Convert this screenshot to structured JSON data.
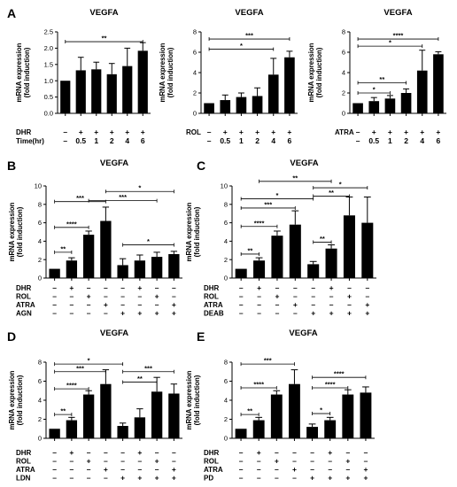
{
  "chart_data": [
    {
      "type": "bar",
      "panel_label": "A",
      "title": "VEGFA",
      "ylabel": [
        "mRNA expression",
        "(fold induction)"
      ],
      "ylim": [
        0,
        2.5
      ],
      "yticks": [
        "0.0",
        "0.5",
        "1.0",
        "1.5",
        "2.0",
        "2.5"
      ],
      "values": [
        1.0,
        1.32,
        1.35,
        1.2,
        1.45,
        1.92
      ],
      "errors": [
        0,
        0.4,
        0.22,
        0.33,
        0.55,
        0.25
      ],
      "rows": [
        {
          "label": "DHR",
          "cells": [
            "–",
            "+",
            "+",
            "+",
            "+",
            "+"
          ]
        },
        {
          "label": "Time(hr)",
          "cells": [
            "–",
            "0.5",
            "1",
            "2",
            "4",
            "6"
          ]
        }
      ],
      "brackets": [
        {
          "from": 0,
          "to": 5,
          "y": 2.2,
          "label": "**"
        }
      ]
    },
    {
      "type": "bar",
      "panel_label": "",
      "title": "VEGFA",
      "ylabel": [
        "mRNA expression",
        "(fold induction)"
      ],
      "ylim": [
        0,
        8
      ],
      "yticks": [
        "0",
        "2",
        "4",
        "6",
        "8"
      ],
      "values": [
        1.0,
        1.3,
        1.6,
        1.7,
        3.8,
        5.5
      ],
      "errors": [
        0,
        0.5,
        0.4,
        0.8,
        1.6,
        0.6
      ],
      "rows": [
        {
          "label": "ROL",
          "cells": [
            "–",
            "+",
            "+",
            "+",
            "+",
            "+"
          ]
        },
        {
          "label": "",
          "cells": [
            "–",
            "0.5",
            "1",
            "2",
            "4",
            "6"
          ]
        }
      ],
      "brackets": [
        {
          "from": 0,
          "to": 5,
          "y": 7.3,
          "label": "***"
        },
        {
          "from": 0,
          "to": 4,
          "y": 6.3,
          "label": "*"
        }
      ]
    },
    {
      "type": "bar",
      "panel_label": "",
      "title": "VEGFA",
      "ylabel": [
        "mRNA expression",
        "(fold induction)"
      ],
      "ylim": [
        0,
        8
      ],
      "yticks": [
        "0",
        "2",
        "4",
        "6",
        "8"
      ],
      "values": [
        1.0,
        1.2,
        1.45,
        2.0,
        4.2,
        5.8
      ],
      "errors": [
        0,
        0.35,
        0.3,
        0.4,
        2.0,
        0.25
      ],
      "rows": [
        {
          "label": "ATRA",
          "cells": [
            "–",
            "+",
            "+",
            "+",
            "+",
            "+"
          ]
        },
        {
          "label": "",
          "cells": [
            "–",
            "0.5",
            "1",
            "2",
            "4",
            "6"
          ]
        }
      ],
      "brackets": [
        {
          "from": 0,
          "to": 5,
          "y": 7.3,
          "label": "****"
        },
        {
          "from": 0,
          "to": 4,
          "y": 6.6,
          "label": "*"
        },
        {
          "from": 0,
          "to": 3,
          "y": 3.0,
          "label": "**"
        },
        {
          "from": 0,
          "to": 2,
          "y": 2.0,
          "label": "*"
        }
      ]
    },
    {
      "type": "bar",
      "panel_label": "B",
      "title": "VEGFA",
      "ylabel": [
        "mRNA expression",
        "(fold induction)"
      ],
      "ylim": [
        0,
        10
      ],
      "yticks": [
        "0",
        "2",
        "4",
        "6",
        "8",
        "10"
      ],
      "values": [
        1.0,
        1.9,
        4.7,
        6.2,
        1.4,
        1.9,
        2.3,
        2.6
      ],
      "errors": [
        0,
        0.3,
        0.4,
        1.5,
        0.7,
        0.6,
        0.5,
        0.3
      ],
      "rows": [
        {
          "label": "DHR",
          "cells": [
            "–",
            "+",
            "–",
            "–",
            "–",
            "+",
            "–",
            "–"
          ]
        },
        {
          "label": "ROL",
          "cells": [
            "–",
            "–",
            "+",
            "–",
            "–",
            "–",
            "+",
            "–"
          ]
        },
        {
          "label": "ATRA",
          "cells": [
            "–",
            "–",
            "–",
            "+",
            "–",
            "–",
            "–",
            "+"
          ]
        },
        {
          "label": "AGN",
          "cells": [
            "–",
            "–",
            "–",
            "–",
            "+",
            "+",
            "+",
            "+"
          ]
        }
      ],
      "brackets": [
        {
          "from": 0,
          "to": 1,
          "y": 2.8,
          "label": "**"
        },
        {
          "from": 0,
          "to": 2,
          "y": 5.5,
          "label": "****"
        },
        {
          "from": 0,
          "to": 3,
          "y": 8.3,
          "label": "***"
        },
        {
          "from": 2,
          "to": 6,
          "y": 8.4,
          "label": "***"
        },
        {
          "from": 3,
          "to": 7,
          "y": 9.4,
          "label": "*"
        },
        {
          "from": 4,
          "to": 7,
          "y": 3.6,
          "label": "*"
        }
      ]
    },
    {
      "type": "bar",
      "panel_label": "C",
      "title": "VEGFA",
      "ylabel": [
        "mRNA expression",
        "(fold induction)"
      ],
      "ylim": [
        0,
        10
      ],
      "yticks": [
        "0",
        "2",
        "4",
        "6",
        "8",
        "10"
      ],
      "values": [
        1.0,
        1.9,
        4.6,
        5.8,
        1.5,
        3.2,
        6.8,
        6.0
      ],
      "errors": [
        0,
        0.3,
        0.5,
        1.5,
        0.3,
        0.4,
        2.0,
        2.8
      ],
      "rows": [
        {
          "label": "DHR",
          "cells": [
            "–",
            "+",
            "–",
            "–",
            "–",
            "+",
            "–",
            "–"
          ]
        },
        {
          "label": "ROL",
          "cells": [
            "–",
            "–",
            "+",
            "–",
            "–",
            "–",
            "+",
            "–"
          ]
        },
        {
          "label": "ATRA",
          "cells": [
            "–",
            "–",
            "–",
            "+",
            "–",
            "–",
            "–",
            "+"
          ]
        },
        {
          "label": "DEAB",
          "cells": [
            "–",
            "–",
            "–",
            "–",
            "+",
            "+",
            "+",
            "+"
          ]
        }
      ],
      "brackets": [
        {
          "from": 0,
          "to": 1,
          "y": 2.6,
          "label": "**"
        },
        {
          "from": 0,
          "to": 2,
          "y": 5.6,
          "label": "****"
        },
        {
          "from": 0,
          "to": 3,
          "y": 7.6,
          "label": "***"
        },
        {
          "from": 0,
          "to": 4,
          "y": 8.6,
          "label": "*"
        },
        {
          "from": 1,
          "to": 5,
          "y": 10.5,
          "label": "**"
        },
        {
          "from": 4,
          "to": 5,
          "y": 3.9,
          "label": "**"
        },
        {
          "from": 4,
          "to": 6,
          "y": 8.9,
          "label": "**"
        },
        {
          "from": 4,
          "to": 7,
          "y": 9.8,
          "label": "*"
        }
      ]
    },
    {
      "type": "bar",
      "panel_label": "D",
      "title": "VEGFA",
      "ylabel": [
        "mRNA expression",
        "(fold induction)"
      ],
      "ylim": [
        0,
        8
      ],
      "yticks": [
        "0",
        "2",
        "4",
        "6",
        "8"
      ],
      "values": [
        1.0,
        1.9,
        4.6,
        5.7,
        1.3,
        2.2,
        4.9,
        4.7
      ],
      "errors": [
        0,
        0.3,
        0.4,
        1.5,
        0.3,
        0.9,
        1.5,
        1.0
      ],
      "rows": [
        {
          "label": "DHR",
          "cells": [
            "–",
            "+",
            "–",
            "–",
            "–",
            "+",
            "–",
            "–"
          ]
        },
        {
          "label": "ROL",
          "cells": [
            "–",
            "–",
            "+",
            "–",
            "–",
            "–",
            "+",
            "–"
          ]
        },
        {
          "label": "ATRA",
          "cells": [
            "–",
            "–",
            "–",
            "+",
            "–",
            "–",
            "–",
            "+"
          ]
        },
        {
          "label": "LDN",
          "cells": [
            "–",
            "–",
            "–",
            "–",
            "+",
            "+",
            "+",
            "+"
          ]
        }
      ],
      "brackets": [
        {
          "from": 0,
          "to": 1,
          "y": 2.5,
          "label": "**"
        },
        {
          "from": 0,
          "to": 2,
          "y": 5.2,
          "label": "****"
        },
        {
          "from": 0,
          "to": 3,
          "y": 7.0,
          "label": "***"
        },
        {
          "from": 0,
          "to": 4,
          "y": 7.8,
          "label": "*"
        },
        {
          "from": 4,
          "to": 6,
          "y": 5.9,
          "label": "**"
        },
        {
          "from": 4,
          "to": 7,
          "y": 7.0,
          "label": "***"
        }
      ]
    },
    {
      "type": "bar",
      "panel_label": "E",
      "title": "VEGFA",
      "ylabel": [
        "mRNA expression",
        "(fold induction)"
      ],
      "ylim": [
        0,
        8
      ],
      "yticks": [
        "0",
        "2",
        "4",
        "6",
        "8"
      ],
      "values": [
        1.0,
        1.9,
        4.6,
        5.7,
        1.2,
        1.9,
        4.6,
        4.8
      ],
      "errors": [
        0,
        0.3,
        0.4,
        1.5,
        0.3,
        0.3,
        0.5,
        0.6
      ],
      "rows": [
        {
          "label": "DHR",
          "cells": [
            "–",
            "+",
            "–",
            "–",
            "–",
            "+",
            "–",
            "–"
          ]
        },
        {
          "label": "ROL",
          "cells": [
            "–",
            "–",
            "+",
            "–",
            "–",
            "–",
            "+",
            "–"
          ]
        },
        {
          "label": "ATRA",
          "cells": [
            "–",
            "–",
            "–",
            "+",
            "–",
            "–",
            "–",
            "+"
          ]
        },
        {
          "label": "PD",
          "cells": [
            "–",
            "–",
            "–",
            "–",
            "+",
            "+",
            "+",
            "+"
          ]
        }
      ],
      "brackets": [
        {
          "from": 0,
          "to": 1,
          "y": 2.5,
          "label": "**"
        },
        {
          "from": 0,
          "to": 2,
          "y": 5.3,
          "label": "****"
        },
        {
          "from": 0,
          "to": 3,
          "y": 7.8,
          "label": "***"
        },
        {
          "from": 4,
          "to": 5,
          "y": 2.6,
          "label": "*"
        },
        {
          "from": 4,
          "to": 6,
          "y": 5.3,
          "label": "****"
        },
        {
          "from": 4,
          "to": 7,
          "y": 6.4,
          "label": "****"
        }
      ]
    }
  ]
}
